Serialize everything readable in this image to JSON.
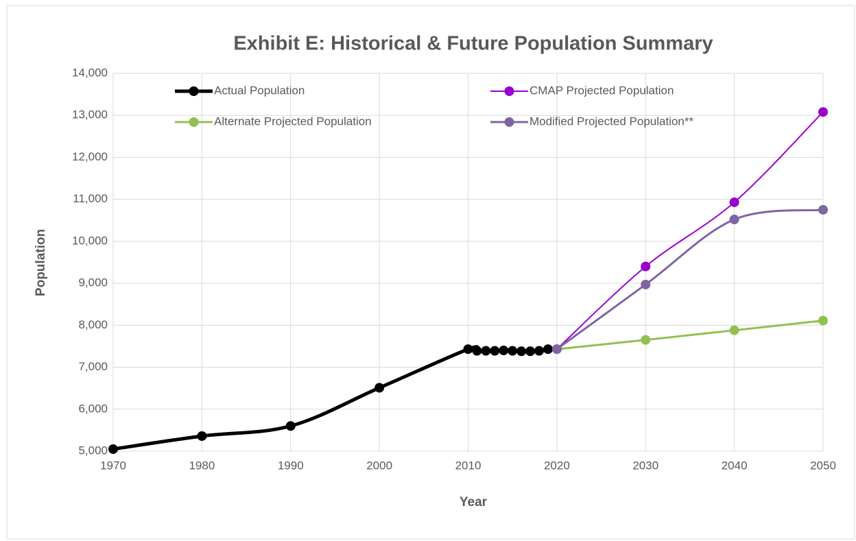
{
  "chart_data": {
    "type": "line",
    "title": "Exhibit E: Historical & Future Population Summary",
    "xlabel": "Year",
    "ylabel": "Population",
    "series": [
      {
        "name": "Actual Population",
        "color": "#000000",
        "x": [
          1970,
          1980,
          1990,
          2000,
          2010,
          2011,
          2012,
          2013,
          2014,
          2015,
          2016,
          2017,
          2018,
          2019
        ],
        "values": [
          5050,
          5360,
          5600,
          6510,
          7430,
          7390,
          7390,
          7390,
          7400,
          7390,
          7380,
          7380,
          7390,
          7430
        ]
      },
      {
        "name": "CMAP Projected Population",
        "color": "#9900cc",
        "x": [
          2020,
          2030,
          2040,
          2050
        ],
        "values": [
          7430,
          9400,
          10930,
          13080
        ]
      },
      {
        "name": "Alternate Projected Population",
        "color": "#92c050",
        "x": [
          2020,
          2030,
          2040,
          2050
        ],
        "values": [
          7430,
          7650,
          7880,
          8110
        ]
      },
      {
        "name": "Modified Projected Population**",
        "color": "#8064a2",
        "x": [
          2020,
          2030,
          2040,
          2050
        ],
        "values": [
          7430,
          8970,
          10520,
          10750
        ]
      }
    ],
    "xlim": [
      1970,
      2050
    ],
    "xticks": [
      1970,
      1980,
      1990,
      2000,
      2010,
      2020,
      2030,
      2040,
      2050
    ],
    "ylim": [
      5000,
      14000
    ],
    "yticks": [
      {
        "value": 5000,
        "label": "5,000"
      },
      {
        "value": 6000,
        "label": "6,000"
      },
      {
        "value": 7000,
        "label": "7,000"
      },
      {
        "value": 8000,
        "label": "8,000"
      },
      {
        "value": 9000,
        "label": "9,000"
      },
      {
        "value": 10000,
        "label": "10,000"
      },
      {
        "value": 11000,
        "label": "11,000"
      },
      {
        "value": 12000,
        "label": "12,000"
      },
      {
        "value": 13000,
        "label": "13,000"
      },
      {
        "value": 14000,
        "label": "14,000"
      }
    ],
    "grid": true
  }
}
